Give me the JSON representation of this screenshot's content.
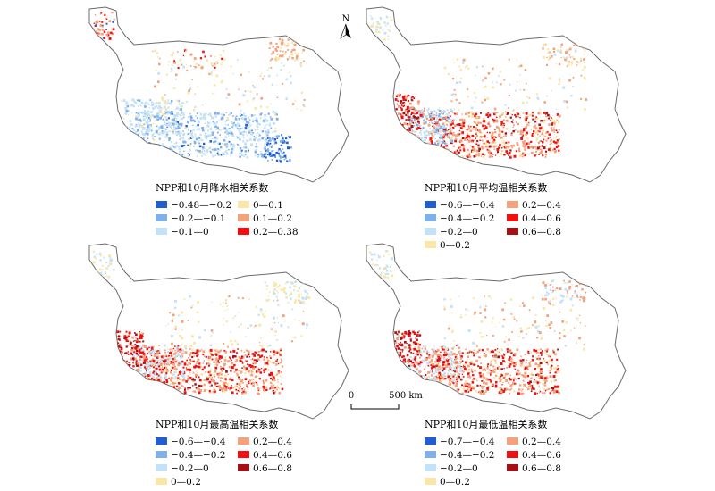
{
  "north_label": "N",
  "scalebar": {
    "zero": "0",
    "end": "500 km"
  },
  "panels": [
    {
      "title": "NPP和10月降水相关系数",
      "legend": [
        {
          "label": "−0.48—−0.2",
          "color": "#1f5fd1"
        },
        {
          "label": "−0.2—−0.1",
          "color": "#7fb0ea"
        },
        {
          "label": "−0.1—0",
          "color": "#c3e2f7"
        },
        {
          "label": "0—0.1",
          "color": "#fbe6a8"
        },
        {
          "label": "0.1—0.2",
          "color": "#f4a27c"
        },
        {
          "label": "0.2—0.38",
          "color": "#f20f0f"
        }
      ]
    },
    {
      "title": "NPP和10月平均温相关系数",
      "legend": [
        {
          "label": "−0.6—−0.4",
          "color": "#1f5fd1"
        },
        {
          "label": "−0.4—−0.2",
          "color": "#7fb0ea"
        },
        {
          "label": "−0.2—0",
          "color": "#c3e2f7"
        },
        {
          "label": "0—0.2",
          "color": "#fbe6a8"
        },
        {
          "label": "0.2—0.4",
          "color": "#f4a27c"
        },
        {
          "label": "0.4—0.6",
          "color": "#f20f0f"
        },
        {
          "label": "0.6—0.8",
          "color": "#a50f15"
        }
      ]
    },
    {
      "title": "NPP和10月最高温相关系数",
      "legend": [
        {
          "label": "−0.6—−0.4",
          "color": "#1f5fd1"
        },
        {
          "label": "−0.4—−0.2",
          "color": "#7fb0ea"
        },
        {
          "label": "−0.2—0",
          "color": "#c3e2f7"
        },
        {
          "label": "0—0.2",
          "color": "#fbe6a8"
        },
        {
          "label": "0.2—0.4",
          "color": "#f4a27c"
        },
        {
          "label": "0.4—0.6",
          "color": "#f20f0f"
        },
        {
          "label": "0.6—0.8",
          "color": "#a50f15"
        }
      ]
    },
    {
      "title": "NPP和10月最低温相关系数",
      "legend": [
        {
          "label": "−0.7—−0.4",
          "color": "#1f5fd1"
        },
        {
          "label": "−0.4—−0.2",
          "color": "#7fb0ea"
        },
        {
          "label": "−0.2—0",
          "color": "#c3e2f7"
        },
        {
          "label": "0—0.2",
          "color": "#fbe6a8"
        },
        {
          "label": "0.2—0.4",
          "color": "#f4a27c"
        },
        {
          "label": "0.4—0.6",
          "color": "#f20f0f"
        },
        {
          "label": "0.6—0.8",
          "color": "#a50f15"
        }
      ]
    }
  ]
}
